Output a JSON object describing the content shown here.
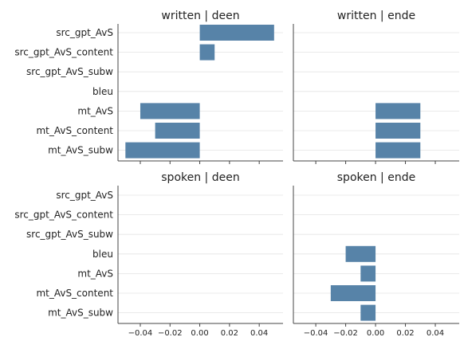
{
  "chart_data": {
    "type": "bar",
    "orientation": "horizontal",
    "facet_grid": true,
    "categories": [
      "src_gpt_AvS",
      "src_gpt_AvS_content",
      "src_gpt_AvS_subw",
      "bleu",
      "mt_AvS",
      "mt_AvS_content",
      "mt_AvS_subw"
    ],
    "xlim": [
      -0.055,
      0.056
    ],
    "xticks": [
      -0.04,
      -0.02,
      0.0,
      0.02,
      0.04
    ],
    "xtick_labels": [
      "−0.04",
      "−0.02",
      "0.00",
      "0.02",
      "0.04"
    ],
    "grid": "horizontal",
    "bar_color": "#5783a8",
    "panels": [
      {
        "title": "written | deen",
        "values": [
          0.05,
          0.01,
          0,
          0,
          -0.04,
          -0.03,
          -0.05
        ]
      },
      {
        "title": "written | ende",
        "values": [
          0,
          0,
          0,
          0,
          0.03,
          0.03,
          0.03
        ]
      },
      {
        "title": "spoken | deen",
        "values": [
          0,
          0,
          0,
          0,
          0,
          0,
          0
        ]
      },
      {
        "title": "spoken | ende",
        "values": [
          0,
          0,
          0,
          -0.02,
          -0.01,
          -0.03,
          -0.01
        ]
      }
    ]
  }
}
